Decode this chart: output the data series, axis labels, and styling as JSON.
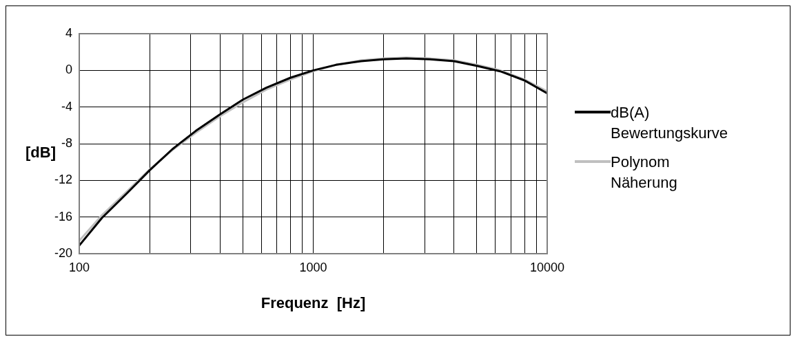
{
  "chart_data": {
    "type": "line",
    "xlabel": "Frequenz  [Hz]",
    "ylabel": "[dB]",
    "log": "x",
    "grid": true,
    "legend": "right",
    "marker": "none",
    "line_style": "solid",
    "xlim": [
      100,
      10000
    ],
    "ylim": [
      -20,
      4
    ],
    "yticks": [
      -20,
      -16,
      -12,
      -8,
      -4,
      0,
      4
    ],
    "xticks": [
      100,
      {
        "value": 200,
        "label": null
      },
      {
        "value": 300,
        "label": null
      },
      {
        "value": 400,
        "label": null
      },
      {
        "value": 500,
        "label": null
      },
      {
        "value": 600,
        "label": null
      },
      {
        "value": 700,
        "label": null
      },
      {
        "value": 800,
        "label": null
      },
      {
        "value": 900,
        "label": null
      },
      1000,
      {
        "value": 2000,
        "label": null
      },
      {
        "value": 3000,
        "label": null
      },
      {
        "value": 4000,
        "label": null
      },
      {
        "value": 5000,
        "label": null
      },
      {
        "value": 6000,
        "label": null
      },
      {
        "value": 7000,
        "label": null
      },
      {
        "value": 8000,
        "label": null
      },
      {
        "value": 9000,
        "label": null
      },
      10000
    ],
    "x": [
      100,
      125,
      160,
      200,
      250,
      315,
      400,
      500,
      630,
      800,
      1000,
      1250,
      1600,
      2000,
      2500,
      3150,
      4000,
      5000,
      6300,
      8000,
      10000
    ],
    "series": [
      {
        "name": "dB(A) Bewertungskurve",
        "color": "#000000",
        "values": [
          -19.1,
          -16.1,
          -13.4,
          -10.9,
          -8.6,
          -6.6,
          -4.8,
          -3.2,
          -1.9,
          -0.8,
          0,
          0.6,
          1.0,
          1.2,
          1.3,
          1.2,
          1.0,
          0.5,
          -0.1,
          -1.1,
          -2.5
        ]
      },
      {
        "name": "Polynom Näherung",
        "color": "#c0c0c0",
        "values": [
          -18.6,
          -15.8,
          -13.2,
          -10.8,
          -8.7,
          -6.8,
          -5.0,
          -3.5,
          -2.1,
          -1.0,
          -0.1,
          0.6,
          1.1,
          1.3,
          1.4,
          1.3,
          1.1,
          0.6,
          0.0,
          -1.0,
          -2.3
        ]
      }
    ]
  }
}
